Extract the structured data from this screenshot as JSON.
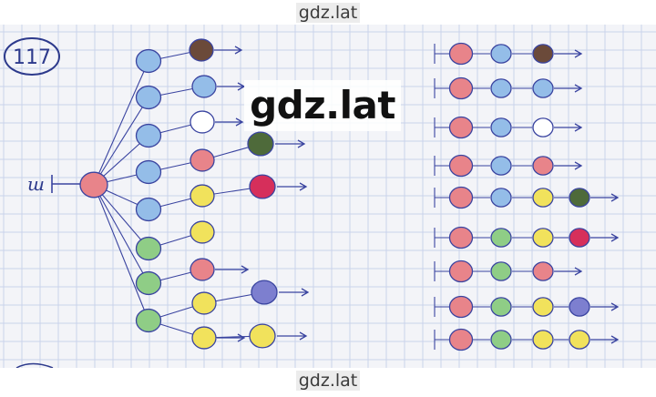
{
  "watermark": {
    "top": "gdz.lat",
    "center": "gdz.lat",
    "bottom": "gdz.lat"
  },
  "problem_number": "117",
  "start_label": "ш",
  "colors": {
    "red": "#e8848a",
    "blue": "#94bde8",
    "green": "#8fcd86",
    "yellow": "#f1e25c",
    "brown": "#6b4a3a",
    "white": "#ffffff",
    "darkgreen": "#4e6a3a",
    "crimson": "#d62f5b",
    "purple": "#7d7fcf",
    "ink": "#3a44a0",
    "grid": "#c9d3ea",
    "paper": "#f3f4f8"
  },
  "tree": {
    "root": "red",
    "level1": [
      "blue",
      "blue",
      "blue",
      "blue",
      "blue",
      "green",
      "green",
      "green"
    ],
    "level2": [
      "brown",
      "blue",
      "white",
      "red",
      "yellow",
      "yellow",
      "red",
      "yellow",
      "yellow"
    ],
    "level3": [
      "darkgreen",
      "crimson",
      "purple",
      "yellow"
    ]
  },
  "chains": [
    [
      "red",
      "blue",
      "brown"
    ],
    [
      "red",
      "blue",
      "blue"
    ],
    [
      "red",
      "blue",
      "white"
    ],
    [
      "red",
      "blue",
      "red"
    ],
    [
      "red",
      "blue",
      "yellow",
      "darkgreen"
    ],
    [
      "red",
      "green",
      "yellow",
      "crimson"
    ],
    [
      "red",
      "green",
      "red"
    ],
    [
      "red",
      "green",
      "yellow",
      "purple"
    ],
    [
      "red",
      "green",
      "yellow",
      "yellow"
    ]
  ]
}
